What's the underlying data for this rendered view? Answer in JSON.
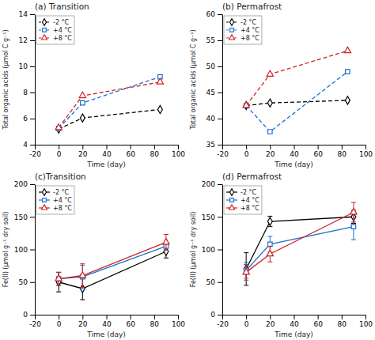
{
  "chart_data": [
    {
      "type": "line",
      "title": "(a) Transition",
      "xlabel": "Time (day)",
      "ylabel": "Total organic acids (μmol C g⁻¹)",
      "xlim": [
        -20,
        100
      ],
      "ylim": [
        4,
        14
      ],
      "xticks": [
        -20,
        0,
        20,
        40,
        60,
        80,
        100
      ],
      "yticks": [
        4,
        6,
        8,
        10,
        12,
        14
      ],
      "grid": false,
      "legend": "upper left",
      "x": [
        0,
        20,
        85
      ],
      "series": [
        {
          "name": "-2 °C",
          "color": "black",
          "marker": "diamond",
          "line_style": "dashed",
          "values": [
            5.2,
            6.05,
            6.7
          ]
        },
        {
          "name": "+4 °C",
          "color": "#1a6fcc",
          "marker": "square",
          "line_style": "dashed",
          "values": [
            5.25,
            7.2,
            9.2
          ]
        },
        {
          "name": "+8 °C",
          "color": "#cc2222",
          "marker": "triangle",
          "line_style": "dashed",
          "values": [
            5.3,
            7.75,
            8.8
          ]
        }
      ]
    },
    {
      "type": "line",
      "title": "(b) Permafrost",
      "xlabel": "Time (day)",
      "ylabel": "Total organic acids (μmol C g⁻¹)",
      "xlim": [
        -20,
        100
      ],
      "ylim": [
        35,
        60
      ],
      "xticks": [
        -20,
        0,
        20,
        40,
        60,
        80,
        100
      ],
      "yticks": [
        35,
        40,
        45,
        50,
        55,
        60
      ],
      "grid": false,
      "legend": "upper left",
      "x": [
        0,
        20,
        85
      ],
      "series": [
        {
          "name": "-2 °C",
          "color": "black",
          "marker": "diamond",
          "line_style": "dashed",
          "values": [
            42.5,
            43.0,
            43.5
          ]
        },
        {
          "name": "+4 °C",
          "color": "#1a6fcc",
          "marker": "square",
          "line_style": "dashed",
          "values": [
            42.5,
            37.5,
            49.0
          ]
        },
        {
          "name": "+8 °C",
          "color": "#cc2222",
          "marker": "triangle",
          "line_style": "dashed",
          "values": [
            42.5,
            48.5,
            53.0
          ]
        }
      ]
    },
    {
      "type": "line",
      "title": "(c)Transition",
      "xlabel": "Time (day)",
      "ylabel": "Fe(II) (μmol g⁻¹ dry soil)",
      "xlim": [
        -20,
        100
      ],
      "ylim": [
        0,
        200
      ],
      "xticks": [
        -20,
        0,
        20,
        40,
        60,
        80,
        100
      ],
      "yticks": [
        0,
        50,
        100,
        150,
        200
      ],
      "grid": false,
      "legend": "upper left",
      "x": [
        0,
        20,
        90
      ],
      "series": [
        {
          "name": "-2 °C",
          "color": "black",
          "marker": "diamond",
          "line_style": "solid",
          "values": [
            50,
            40,
            97
          ],
          "errors": [
            15,
            17,
            10
          ]
        },
        {
          "name": "+4 °C",
          "color": "#1a6fcc",
          "marker": "square",
          "line_style": "solid",
          "values": [
            55,
            58,
            105
          ],
          "errors": [
            10,
            18,
            6
          ]
        },
        {
          "name": "+8 °C",
          "color": "#cc2222",
          "marker": "triangle",
          "line_style": "solid",
          "values": [
            55,
            60,
            111
          ],
          "errors": [
            10,
            18,
            12
          ]
        }
      ]
    },
    {
      "type": "line",
      "title": "(d) Permafrost",
      "xlabel": "Time (day)",
      "ylabel": "Fe(II) (μmol g⁻¹ dry soil)",
      "xlim": [
        -20,
        100
      ],
      "ylim": [
        0,
        200
      ],
      "xticks": [
        -20,
        0,
        20,
        40,
        60,
        80,
        100
      ],
      "yticks": [
        0,
        50,
        100,
        150,
        200
      ],
      "grid": false,
      "legend": "upper left",
      "x": [
        0,
        20,
        90
      ],
      "series": [
        {
          "name": "-2 °C",
          "color": "black",
          "marker": "diamond",
          "line_style": "solid",
          "values": [
            70,
            143,
            150
          ],
          "errors": [
            25,
            8,
            10
          ]
        },
        {
          "name": "+4 °C",
          "color": "#1a6fcc",
          "marker": "square",
          "line_style": "solid",
          "values": [
            68,
            108,
            135
          ],
          "errors": [
            12,
            12,
            20
          ]
        },
        {
          "name": "+8 °C",
          "color": "#cc2222",
          "marker": "triangle",
          "line_style": "solid",
          "values": [
            65,
            93,
            157
          ],
          "errors": [
            12,
            12,
            15
          ]
        }
      ]
    }
  ]
}
